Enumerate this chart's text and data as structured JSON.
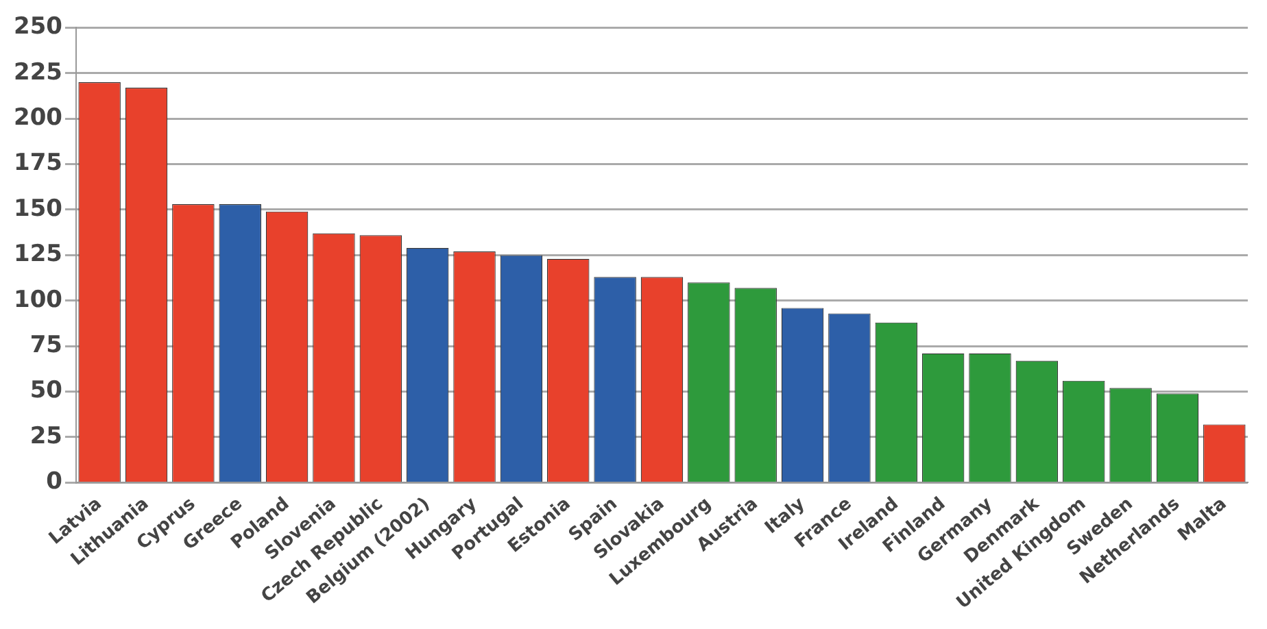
{
  "chart_data": {
    "type": "bar",
    "categories": [
      "Latvia",
      "Lithuania",
      "Cyprus",
      "Greece",
      "Poland",
      "Slovenia",
      "Czech Republic",
      "Belgium (2002)",
      "Hungary",
      "Portugal",
      "Estonia",
      "Spain",
      "Slovakia",
      "Luxembourg",
      "Austria",
      "Italy",
      "France",
      "Ireland",
      "Finland",
      "Germany",
      "Denmark",
      "United Kingdom",
      "Sweden",
      "Netherlands",
      "Malta"
    ],
    "values": [
      220,
      217,
      153,
      153,
      149,
      137,
      136,
      129,
      127,
      125,
      123,
      113,
      113,
      110,
      107,
      96,
      93,
      88,
      71,
      71,
      67,
      56,
      52,
      49,
      32
    ],
    "colors": [
      "#e8412c",
      "#e8412c",
      "#e8412c",
      "#2d5fa8",
      "#e8412c",
      "#e8412c",
      "#e8412c",
      "#2d5fa8",
      "#e8412c",
      "#2d5fa8",
      "#e8412c",
      "#2d5fa8",
      "#e8412c",
      "#2e9a3c",
      "#2e9a3c",
      "#2d5fa8",
      "#2d5fa8",
      "#2e9a3c",
      "#2e9a3c",
      "#2e9a3c",
      "#2e9a3c",
      "#2e9a3c",
      "#2e9a3c",
      "#2e9a3c",
      "#e8412c"
    ],
    "ylim": [
      0,
      250
    ],
    "yticks": [
      0,
      25,
      50,
      75,
      100,
      125,
      150,
      175,
      200,
      225,
      250
    ],
    "grid": "y"
  }
}
